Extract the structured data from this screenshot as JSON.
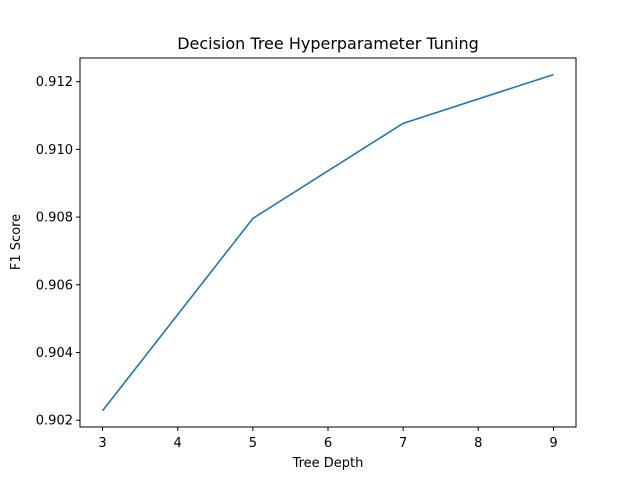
{
  "chart_data": {
    "type": "line",
    "title": "Decision Tree Hyperparameter Tuning",
    "xlabel": "Tree Depth",
    "ylabel": "F1 Score",
    "x": [
      3,
      5,
      7,
      9
    ],
    "series": [
      {
        "values": [
          0.90228,
          0.90796,
          0.91077,
          0.91221
        ]
      }
    ],
    "xlim": [
      2.7,
      9.3
    ],
    "ylim": [
      0.9018,
      0.9127
    ],
    "xticks": [
      3,
      4,
      5,
      6,
      7,
      8,
      9
    ],
    "xtick_labels": [
      "3",
      "4",
      "5",
      "6",
      "7",
      "8",
      "9"
    ],
    "yticks": [
      0.902,
      0.904,
      0.906,
      0.908,
      0.91,
      0.912
    ],
    "ytick_labels": [
      "0.902",
      "0.904",
      "0.906",
      "0.908",
      "0.910",
      "0.912"
    ],
    "grid": false,
    "line_color": "#1f77b4"
  }
}
